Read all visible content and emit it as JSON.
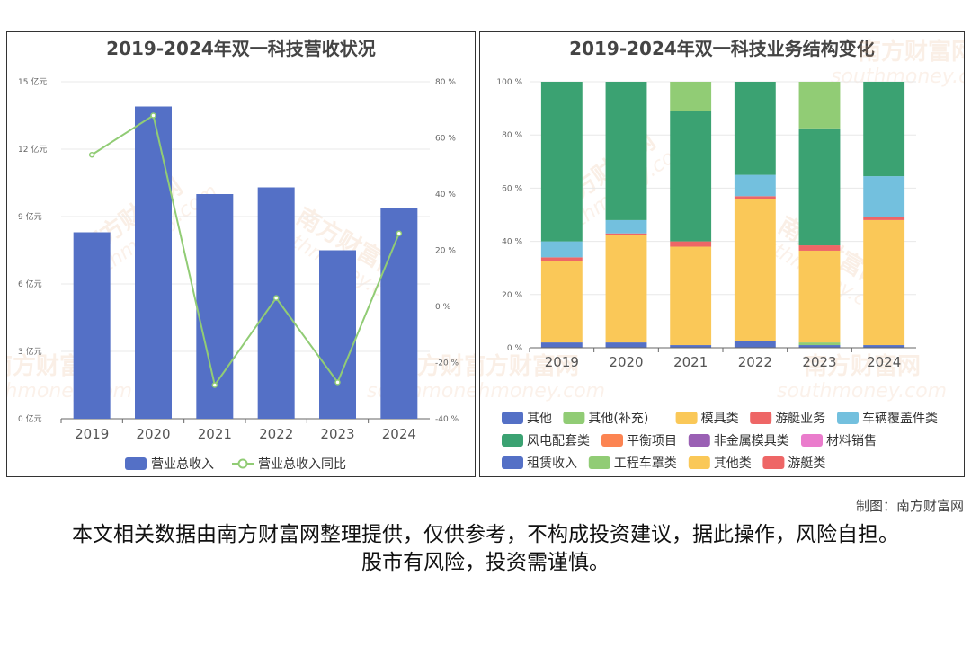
{
  "credit": "制图：南方财富网",
  "disclaimer": "本文相关数据由南方财富网整理提供，仅供参考，不构成投资建议，据此操作，风险自担。股市有风险，投资需谨慎。",
  "watermark": {
    "cn": "南方财富网",
    "en": "southmoney.com"
  },
  "chart_data": [
    {
      "type": "bar",
      "title": "2019-2024年双一科技营收状况",
      "categories": [
        "2019",
        "2020",
        "2021",
        "2022",
        "2023",
        "2024"
      ],
      "series": [
        {
          "name": "营业总收入",
          "type": "bar",
          "axis": "left",
          "color": "#5470c6",
          "values": [
            8.3,
            13.9,
            10.0,
            10.3,
            7.5,
            9.4
          ]
        },
        {
          "name": "营业总收入同比",
          "type": "line",
          "axis": "right",
          "color": "#91cc75",
          "values": [
            54,
            68,
            -28,
            3,
            -27,
            26
          ]
        }
      ],
      "ylim_left": [
        0,
        15
      ],
      "ytick_left": [
        "0 亿元",
        "3 亿元",
        "6 亿元",
        "9 亿元",
        "12 亿元",
        "15 亿元"
      ],
      "ylim_right": [
        -40,
        80
      ],
      "ytick_right": [
        "-40 %",
        "-20 %",
        "0 %",
        "20 %",
        "40 %",
        "60 %",
        "80 %"
      ],
      "legend": "bottom",
      "grid": true
    },
    {
      "type": "bar",
      "stacked": true,
      "title": "2019-2024年双一科技业务结构变化",
      "categories": [
        "2019",
        "2020",
        "2021",
        "2022",
        "2023",
        "2024"
      ],
      "ylim": [
        0,
        100
      ],
      "ytick": [
        "0 %",
        "20 %",
        "40 %",
        "60 %",
        "80 %",
        "100 %"
      ],
      "legend": "bottom",
      "grid": true,
      "series": [
        {
          "name": "其他",
          "color": "#5470c6",
          "values": [
            2,
            2,
            1,
            2.5,
            1,
            1
          ]
        },
        {
          "name": "其他(补充)",
          "color": "#91cc75",
          "values": [
            0,
            0,
            0,
            0,
            1,
            0
          ]
        },
        {
          "name": "模具类",
          "color": "#fac858",
          "values": [
            30.5,
            40.5,
            37,
            53.5,
            34.5,
            47
          ]
        },
        {
          "name": "游艇业务",
          "color": "#ee6666",
          "values": [
            1.5,
            0.5,
            2,
            1,
            2,
            1
          ]
        },
        {
          "name": "车辆覆盖件类",
          "color": "#73c0de",
          "values": [
            6,
            5,
            0,
            8,
            0,
            15.5
          ]
        },
        {
          "name": "风电配套类",
          "color": "#3ba272",
          "values": [
            60,
            52,
            49,
            35,
            44,
            35.5
          ]
        },
        {
          "name": "平衡项目",
          "color": "#fc8452",
          "values": [
            0,
            0,
            0,
            0,
            0,
            0
          ]
        },
        {
          "name": "非金属模具类",
          "color": "#9a60b4",
          "values": [
            0,
            0,
            0,
            0,
            0,
            0
          ]
        },
        {
          "name": "材料销售",
          "color": "#ea7ccc",
          "values": [
            0,
            0,
            0,
            0,
            0,
            0
          ]
        },
        {
          "name": "租赁收入",
          "color": "#5470c6",
          "values": [
            0,
            0,
            0,
            0,
            0,
            0
          ]
        },
        {
          "name": "工程车罩类",
          "color": "#91cc75",
          "values": [
            0,
            0,
            11,
            0,
            17.5,
            0
          ]
        },
        {
          "name": "其他类",
          "color": "#fac858",
          "values": [
            0,
            0,
            0,
            0,
            0,
            0
          ]
        },
        {
          "name": "游艇类",
          "color": "#ee6666",
          "values": [
            0,
            0,
            0,
            0,
            0,
            0
          ]
        }
      ]
    }
  ]
}
